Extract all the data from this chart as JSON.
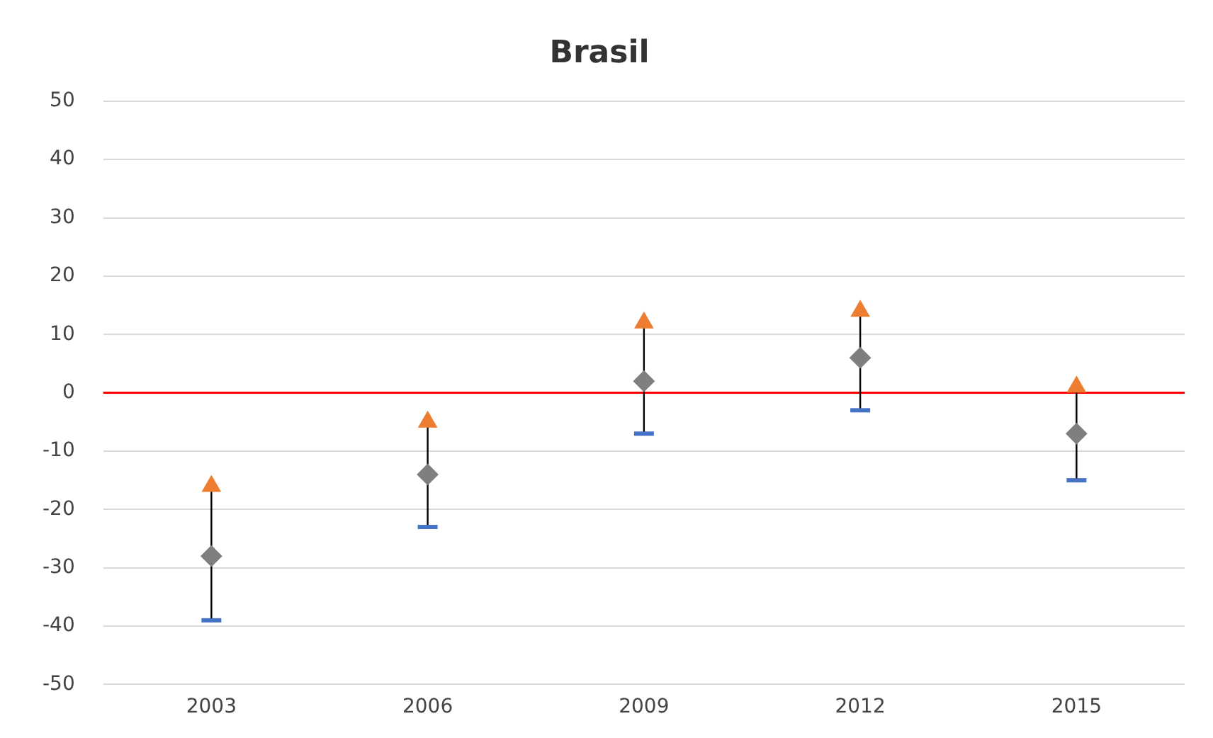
{
  "chart_data": {
    "type": "scatter",
    "title": "Brasil",
    "categories": [
      "2003",
      "2006",
      "2009",
      "2012",
      "2015"
    ],
    "series": [
      {
        "color": "#7f7f7f",
        "marker": "diamond",
        "values": [
          -28,
          -14,
          2,
          6,
          -7
        ],
        "errors": [
          [
            -39,
            -16
          ],
          [
            -23,
            -5
          ],
          [
            -7,
            12
          ],
          [
            -3,
            14
          ],
          [
            -15,
            1
          ]
        ]
      },
      {
        "color": "#ed7d31",
        "marker": "triangle",
        "values": [
          -16,
          -5,
          12,
          14,
          1
        ]
      }
    ],
    "ylim": [
      -50,
      50
    ],
    "yticks": [
      -50,
      -40,
      -30,
      -20,
      -10,
      0,
      10,
      20,
      30,
      40,
      50
    ],
    "ref_lines": [
      {
        "axis": "y",
        "value": 0,
        "color": "#ff0000"
      }
    ],
    "grid": "y",
    "legend": false
  }
}
